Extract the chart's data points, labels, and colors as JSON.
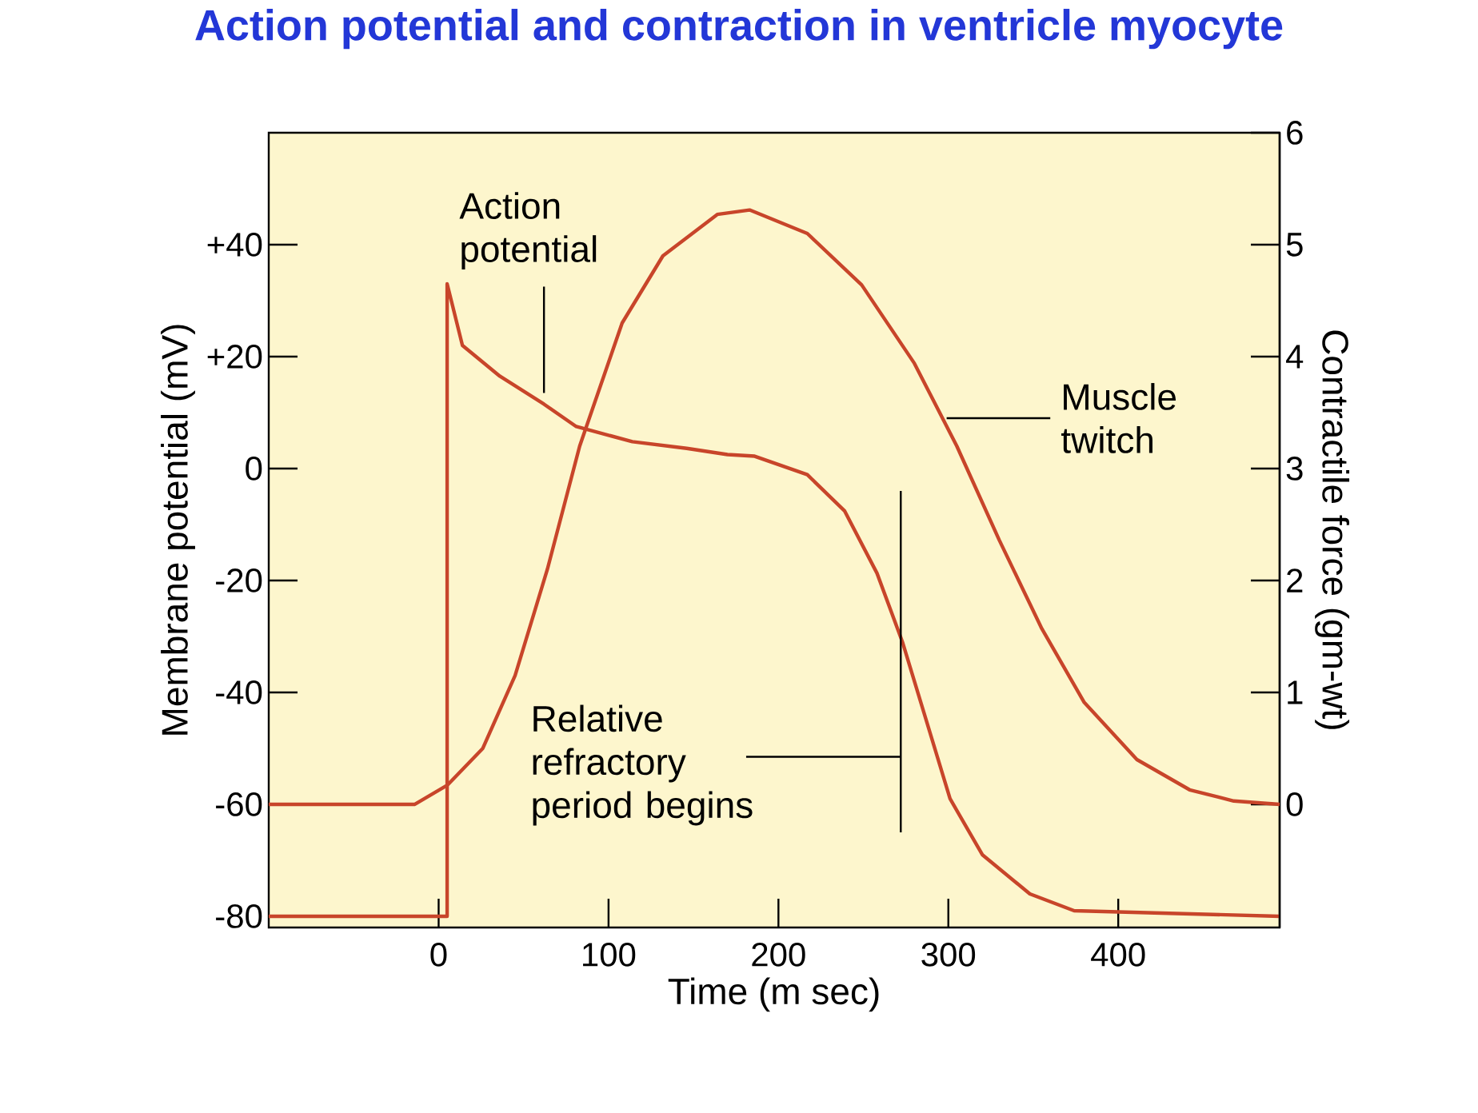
{
  "chart_data": {
    "type": "line",
    "title": "Action potential and contraction in ventricle myocyte",
    "xlabel": "Time (m sec)",
    "ylabel": "Membrane potential (mV)",
    "y2label": "Contractile force (gm-wt)",
    "xlim": [
      -100,
      495
    ],
    "xticks": [
      0,
      100,
      200,
      300,
      400
    ],
    "ylim": [
      -82,
      60
    ],
    "yticks": [
      -80,
      -60,
      -40,
      -20,
      0,
      {
        "value": 20,
        "label": "+20"
      },
      {
        "value": 40,
        "label": "+40"
      }
    ],
    "y2lim": [
      -1.1,
      6
    ],
    "y2ticks": [
      0,
      1,
      2,
      3,
      4,
      5,
      6
    ],
    "grid": false,
    "legend": false,
    "marker": "none",
    "line_style": "solid",
    "series": [
      {
        "color": "#c8452a",
        "x": [
          -100,
          5,
          5,
          14,
          36,
          62,
          81,
          114,
          146,
          170,
          186,
          217,
          239,
          258,
          273,
          286,
          301,
          320,
          348,
          374,
          495
        ],
        "values": [
          -80,
          -80,
          33,
          22,
          16.5,
          11.5,
          7.5,
          4.8,
          3.6,
          2.5,
          2.2,
          -1.1,
          -7.6,
          -18.7,
          -31,
          -44,
          -59,
          -69,
          -76,
          -79,
          -80
        ]
      },
      {
        "color": "#c8452a",
        "axis": "y2",
        "x": [
          -100,
          -14,
          5,
          26,
          45,
          64,
          83,
          108,
          132,
          164,
          183,
          217,
          249,
          280,
          305,
          330,
          355,
          380,
          411,
          442,
          468,
          495
        ],
        "values": [
          0,
          0,
          0.17,
          0.5,
          1.15,
          2.1,
          3.2,
          4.3,
          4.9,
          5.27,
          5.31,
          5.1,
          4.64,
          3.94,
          3.2,
          2.36,
          1.57,
          0.91,
          0.4,
          0.13,
          0.03,
          0
        ]
      }
    ],
    "annotations": [
      {
        "text": "Action potential",
        "x": 62,
        "y": 11.5
      },
      {
        "text": "Muscle twitch",
        "x": 299,
        "y": 9
      }
    ],
    "ref_lines": [
      {
        "axis": "x",
        "value": 272,
        "label": "Relative refractory period begins"
      }
    ]
  }
}
